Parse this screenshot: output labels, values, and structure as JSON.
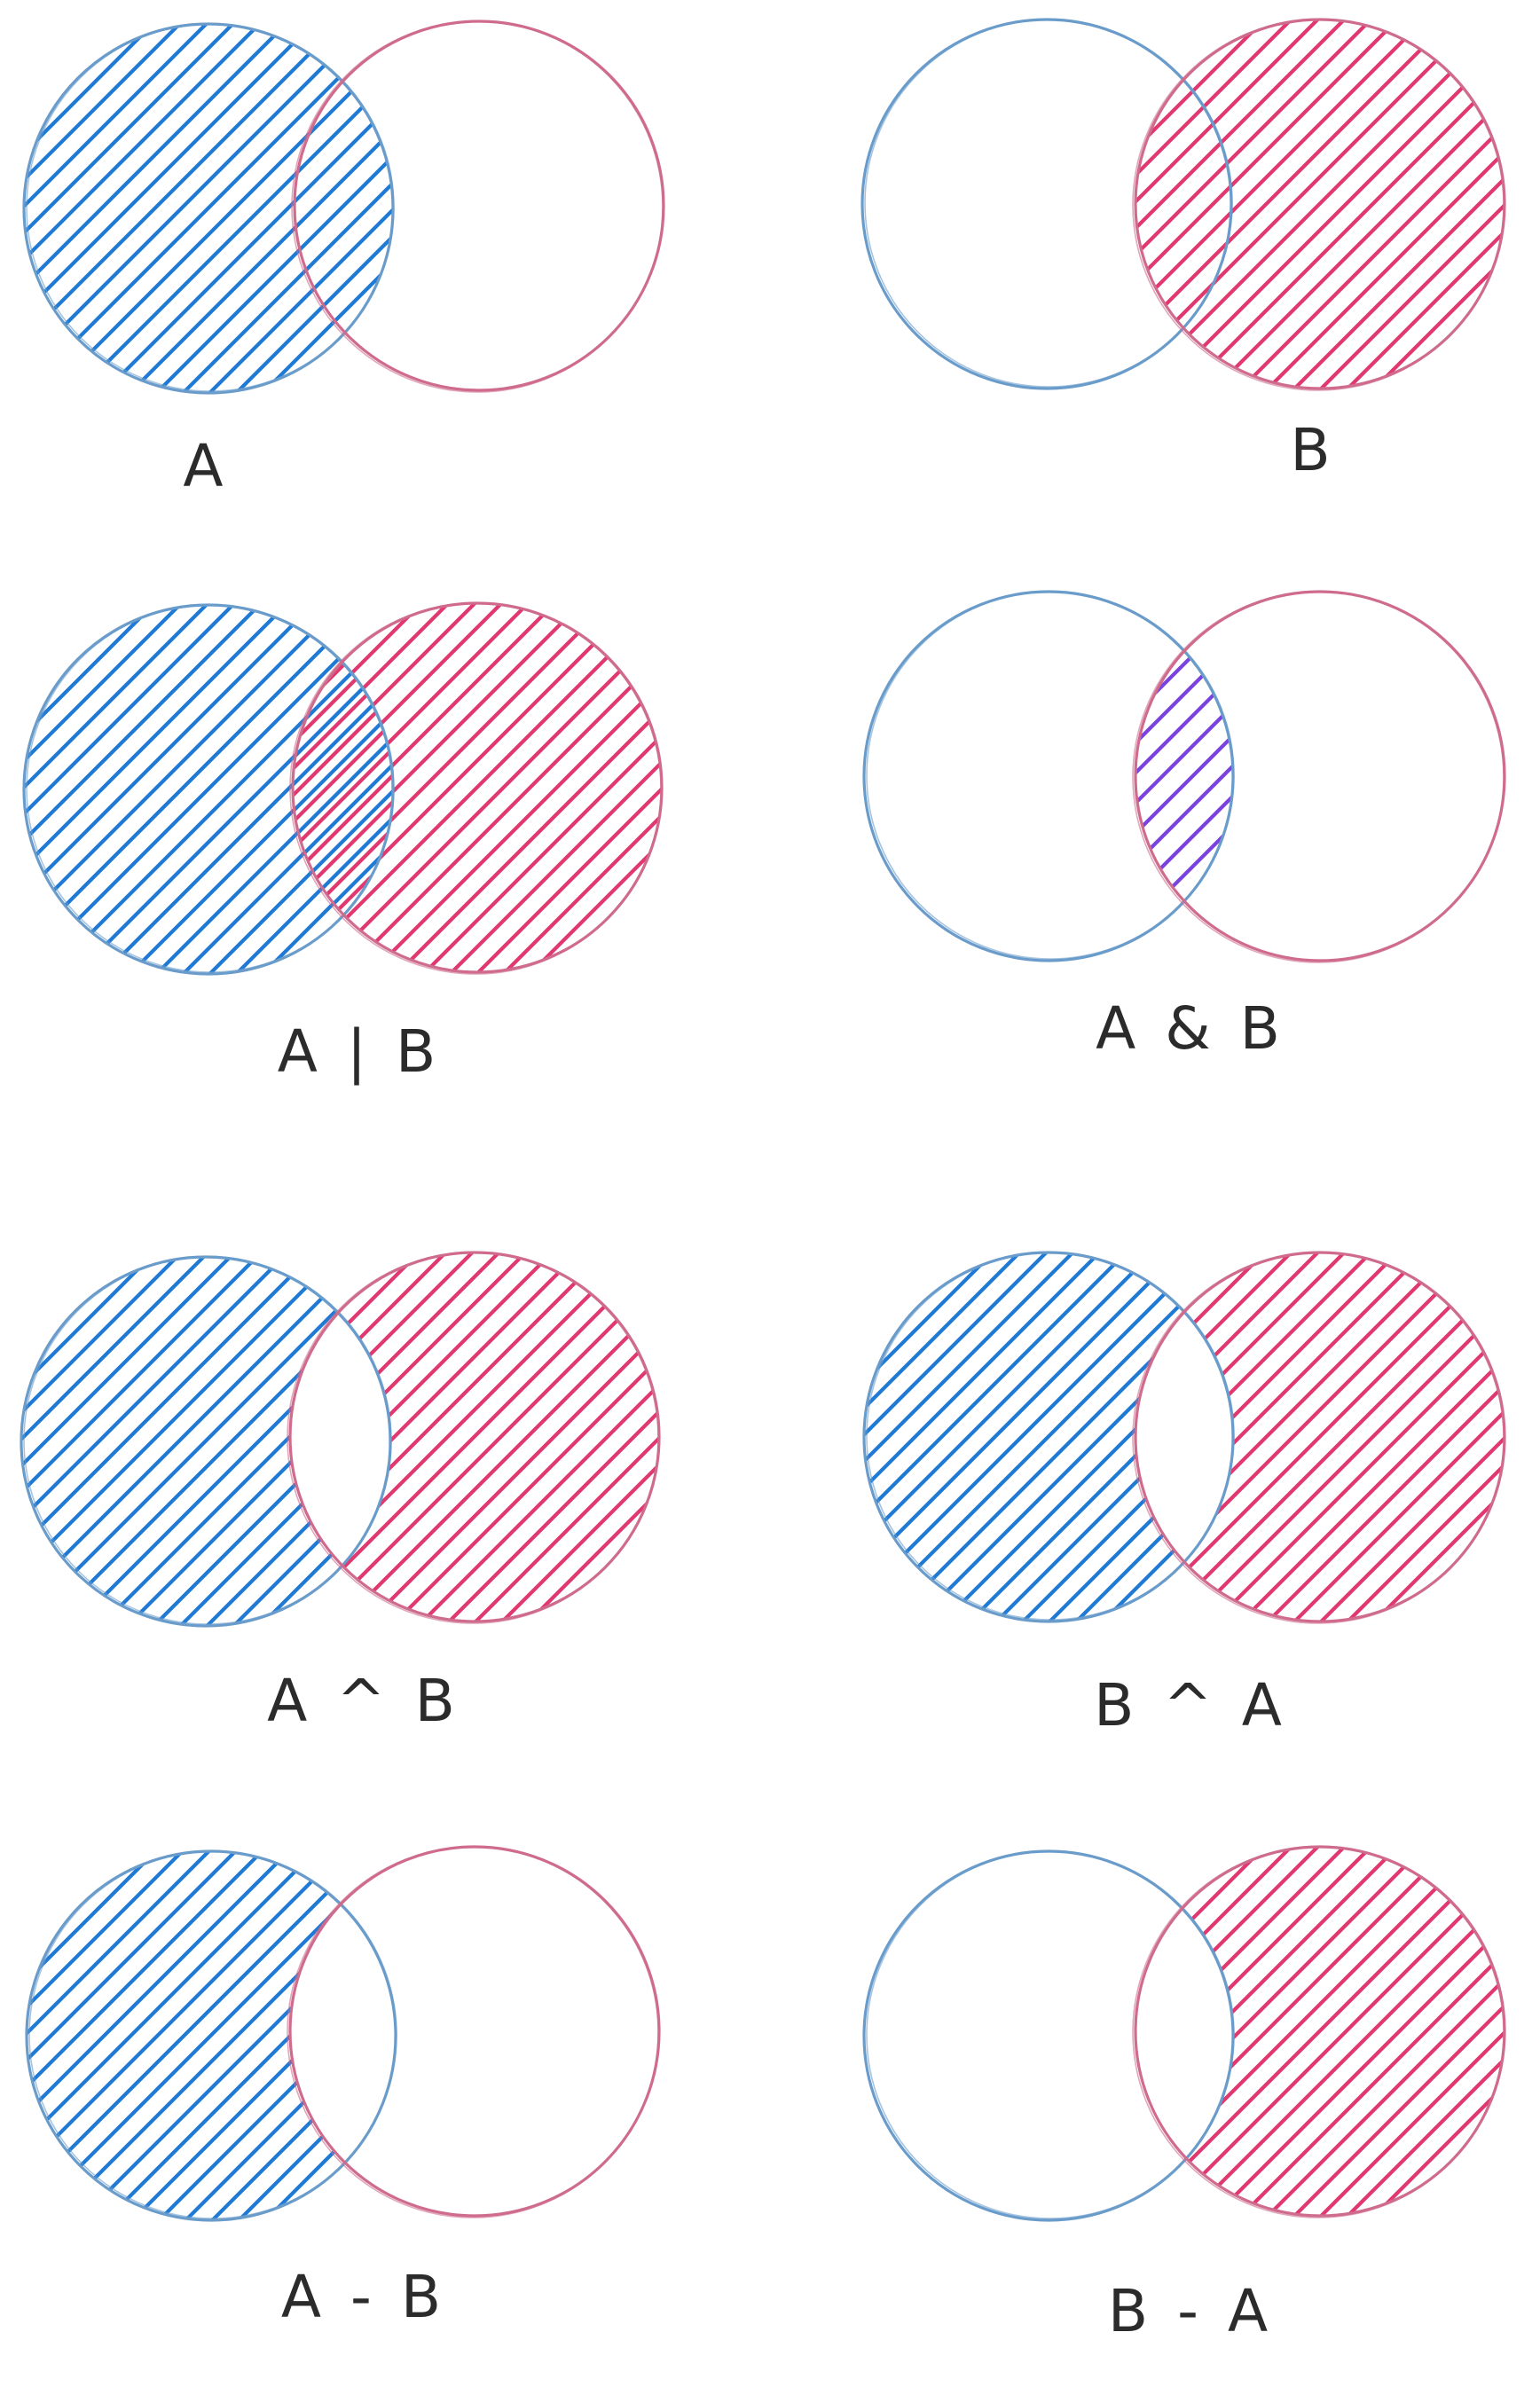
{
  "colors": {
    "set_a_outline": "#6a9ccb",
    "set_a_hatch": "#1f7ad6",
    "set_b_outline": "#cf6b8c",
    "set_b_hatch": "#e0386f",
    "intersection_hatch": "#7a43e0",
    "label_text": "#2b2b2b"
  },
  "diagrams": [
    {
      "id": "a",
      "label": "A",
      "fill": [
        "a_only",
        "both_as_a"
      ]
    },
    {
      "id": "b",
      "label": "B",
      "fill": [
        "b_only",
        "both_as_b"
      ]
    },
    {
      "id": "union",
      "label": "A | B",
      "fill": [
        "a_only",
        "b_only",
        "both_as_ab"
      ]
    },
    {
      "id": "inter",
      "label": "A & B",
      "fill": [
        "both_as_mix"
      ]
    },
    {
      "id": "xor_ab",
      "label": "A ^ B",
      "fill": [
        "a_only",
        "b_only"
      ]
    },
    {
      "id": "xor_ba",
      "label": "B ^ A",
      "fill": [
        "a_only",
        "b_only"
      ]
    },
    {
      "id": "diff_ab",
      "label": "A - B",
      "fill": [
        "a_only"
      ]
    },
    {
      "id": "diff_ba",
      "label": "B - A",
      "fill": [
        "b_only"
      ]
    }
  ]
}
